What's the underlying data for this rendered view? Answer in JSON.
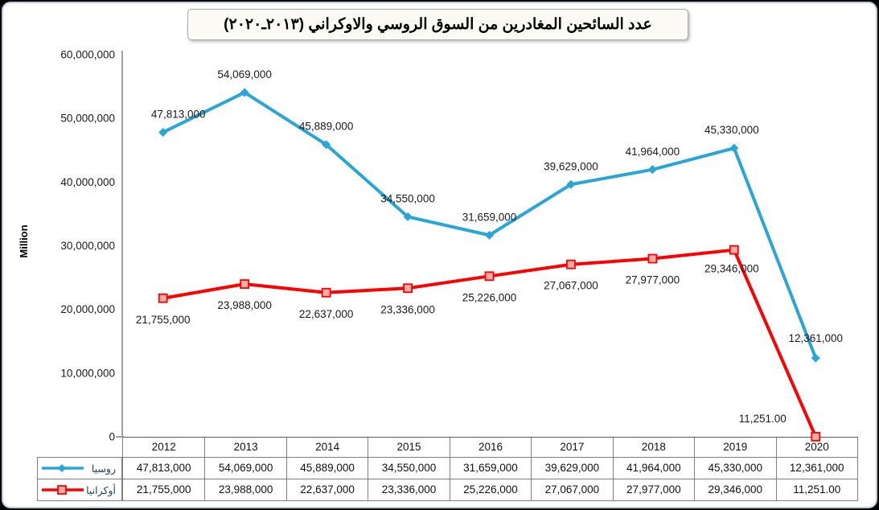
{
  "title": {
    "text": "عدد السائحين المغادرين من السوق الروسي والاوكراني (٢٠١٣ـ٢٠٢٠)"
  },
  "chart_data": {
    "type": "line",
    "title": "عدد السائحين المغادرين من السوق الروسي والاوكراني (٢٠١٣ـ٢٠٢٠)",
    "categories": [
      "2012",
      "2013",
      "2014",
      "2015",
      "2016",
      "2017",
      "2018",
      "2019",
      "2020"
    ],
    "series": [
      {
        "name": "روسيا",
        "color": "#29A5D6",
        "marker": "diamond",
        "values": [
          47813000,
          54069000,
          45889000,
          34550000,
          31659000,
          39629000,
          41964000,
          45330000,
          12361000
        ],
        "labels": [
          "47,813,000",
          "54,069,000",
          "45,889,000",
          "34,550,000",
          "31,659,000",
          "39,629,000",
          "41,964,000",
          "45,330,000",
          "12,361,000"
        ]
      },
      {
        "name": "أوكرانيا",
        "color": "#FE0000",
        "marker": "square",
        "marker_fill": "#F7ADA7",
        "values": [
          21755000,
          23988000,
          22637000,
          23336000,
          25226000,
          27067000,
          27977000,
          29346000,
          11251
        ],
        "labels": [
          "21,755,000",
          "23,988,000",
          "22,637,000",
          "23,336,000",
          "25,226,000",
          "27,067,000",
          "27,977,000",
          "29,346,000",
          "11,251.00"
        ]
      }
    ],
    "xlabel": "",
    "ylabel": "Million",
    "ylim": [
      0,
      60000000
    ],
    "yticks": [
      0,
      10000000,
      20000000,
      30000000,
      40000000,
      50000000,
      60000000
    ],
    "ytick_labels": [
      "0",
      "10,000,000",
      "20,000,000",
      "30,000,000",
      "40,000,000",
      "50,000,000",
      "60,000,000"
    ],
    "grid": false,
    "legend_position": "table-left",
    "axis_color": "#808080",
    "label_color": "#1a1a1a"
  }
}
